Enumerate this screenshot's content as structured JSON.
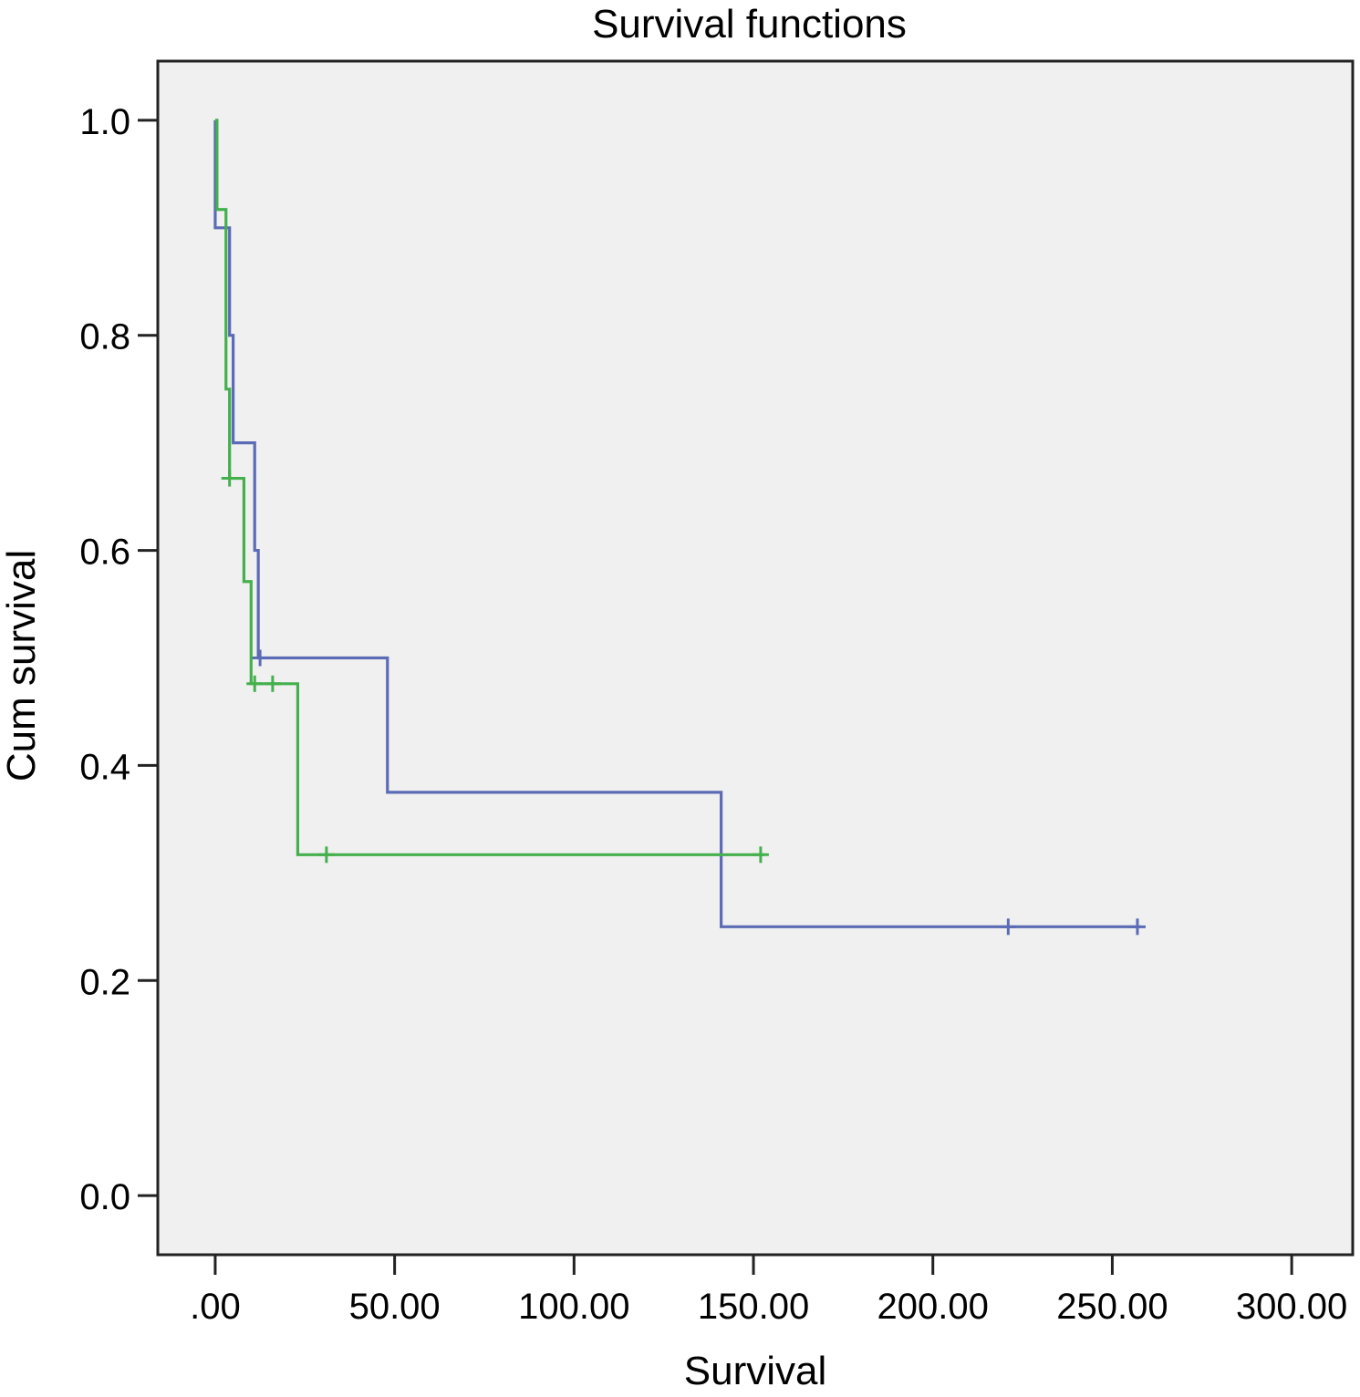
{
  "chart_data": {
    "type": "line",
    "subtype": "step",
    "title": "Survival functions",
    "xlabel": "Survival",
    "ylabel": "Cum survival",
    "xlim": [
      -16,
      317
    ],
    "ylim": [
      -0.055,
      1.055
    ],
    "x_ticks": [
      0,
      50,
      100,
      150,
      200,
      250,
      300
    ],
    "x_tick_labels": [
      ".00",
      "50.00",
      "100.00",
      "150.00",
      "200.00",
      "250.00",
      "300.00"
    ],
    "y_ticks": [
      0,
      0.2,
      0.4,
      0.6,
      0.8,
      1.0
    ],
    "y_tick_labels": [
      "0.0",
      "0.2",
      "0.4",
      "0.6",
      "0.8",
      "1.0"
    ],
    "grid": false,
    "background": "#f0f0f0",
    "series": [
      {
        "color": "#5b6bb5",
        "steps": [
          [
            0,
            1.0
          ],
          [
            0,
            0.9
          ],
          [
            4,
            0.8
          ],
          [
            5,
            0.7
          ],
          [
            11,
            0.6
          ],
          [
            12,
            0.5
          ],
          [
            48,
            0.375
          ],
          [
            141,
            0.25
          ],
          [
            258,
            0.25
          ]
        ],
        "censored": [
          [
            12.5,
            0.5
          ],
          [
            221,
            0.25
          ],
          [
            257,
            0.25
          ]
        ]
      },
      {
        "color": "#44b04d",
        "steps": [
          [
            0,
            1.0
          ],
          [
            0.5,
            0.917
          ],
          [
            3,
            0.75
          ],
          [
            4,
            0.667
          ],
          [
            8,
            0.571
          ],
          [
            10,
            0.476
          ],
          [
            23,
            0.317
          ],
          [
            153,
            0.317
          ]
        ],
        "censored": [
          [
            4,
            0.667
          ],
          [
            11,
            0.476
          ],
          [
            16,
            0.476
          ],
          [
            31,
            0.317
          ],
          [
            152,
            0.317
          ]
        ]
      }
    ]
  }
}
